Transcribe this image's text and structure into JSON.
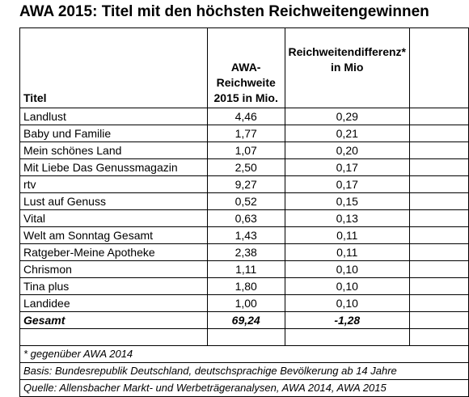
{
  "title": "AWA 2015: Titel mit den höchsten Reichweitengewinnen",
  "header": {
    "col1": "Titel",
    "col2": "AWA-Reichweite 2015 in Mio.",
    "col3": "Reichweitendifferenz* in Mio"
  },
  "rows": [
    {
      "title": "Landlust",
      "reach": "4,46",
      "diff": "0,29"
    },
    {
      "title": "Baby und Familie",
      "reach": "1,77",
      "diff": "0,21"
    },
    {
      "title": "Mein schönes Land",
      "reach": "1,07",
      "diff": "0,20"
    },
    {
      "title": "Mit Liebe Das Genussmagazin",
      "reach": "2,50",
      "diff": "0,17"
    },
    {
      "title": "rtv",
      "reach": "9,27",
      "diff": "0,17"
    },
    {
      "title": "Lust auf Genuss",
      "reach": "0,52",
      "diff": "0,15"
    },
    {
      "title": "Vital",
      "reach": "0,63",
      "diff": "0,13"
    },
    {
      "title": "Welt am Sonntag Gesamt",
      "reach": "1,43",
      "diff": "0,11"
    },
    {
      "title": "Ratgeber-Meine Apotheke",
      "reach": "2,38",
      "diff": "0,11"
    },
    {
      "title": "Chrismon",
      "reach": "1,11",
      "diff": "0,10"
    },
    {
      "title": "Tina plus",
      "reach": "1,80",
      "diff": "0,10"
    },
    {
      "title": "Landidee",
      "reach": "1,00",
      "diff": "0,10"
    }
  ],
  "total": {
    "label": "Gesamt",
    "reach": "69,24",
    "diff": "-1,28"
  },
  "footnote": "* gegenüber AWA 2014",
  "basis": "Basis: Bundesrepublik Deutschland, deutschsprachige Bevölkerung ab 14 Jahre",
  "source": "Quelle: Allensbacher Markt- und Werbeträgeranalysen, AWA 2014, AWA 2015"
}
